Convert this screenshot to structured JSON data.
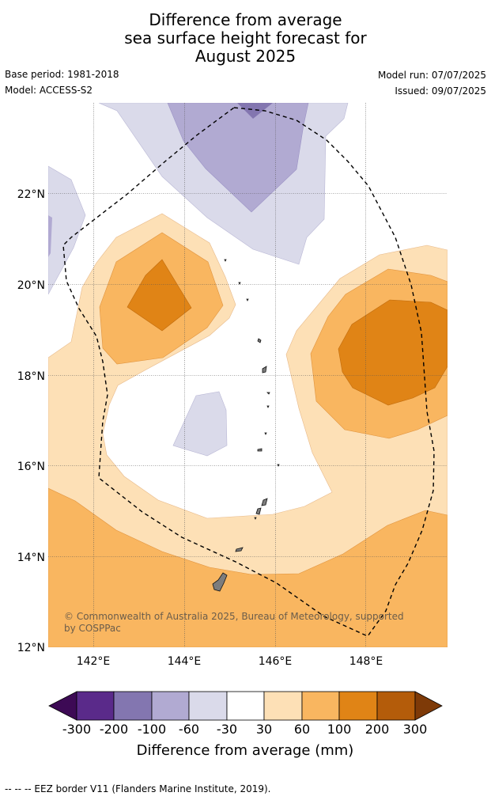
{
  "title": {
    "line1": "Difference from average",
    "line2": "sea surface height forecast for",
    "line3": "August 2025"
  },
  "meta": {
    "base_period": "Base period: 1981-2018",
    "model": "Model: ACCESS-S2",
    "model_run": "Model run: 07/07/2025",
    "issued": "Issued: 09/07/2025"
  },
  "map": {
    "lon_ticks": [
      "142°E",
      "144°E",
      "146°E",
      "148°E"
    ],
    "lat_ticks": [
      "22°N",
      "20°N",
      "18°N",
      "16°N",
      "14°N",
      "12°N"
    ],
    "gridlines": true,
    "copyright": "© Commonwealth of Australia 2025, Bureau of Meteorology, supported by COSPPac"
  },
  "colorbar": {
    "title": "Difference from average (mm)",
    "labels": [
      "-300",
      "-200",
      "-100",
      "-60",
      "-30",
      "30",
      "60",
      "100",
      "200",
      "300"
    ],
    "colors": [
      "#3d0a55",
      "#5a2a8a",
      "#8376b0",
      "#b1aad2",
      "#dadaea",
      "#ffffff",
      "#fde0b6",
      "#f9b660",
      "#e08416",
      "#b45c0a",
      "#7e3a08"
    ]
  },
  "footer": "--  --  -- EEZ border V11 (Flanders Marine Institute, 2019)."
}
